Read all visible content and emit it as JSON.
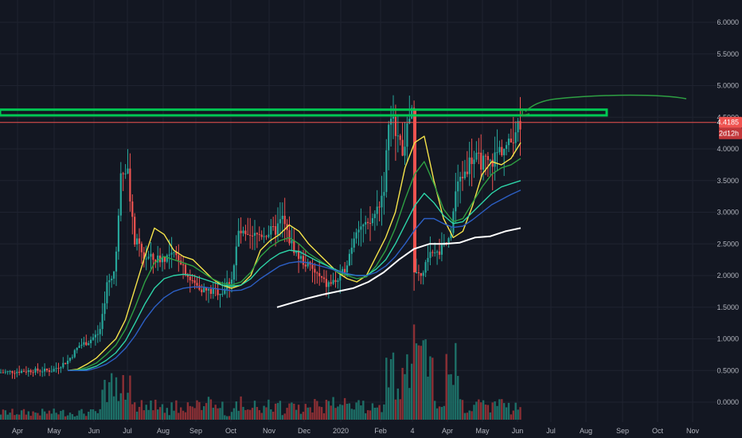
{
  "chart_data": {
    "type": "candlestick",
    "x_axis_labels": [
      "Apr",
      "May",
      "Jun",
      "Jul",
      "Aug",
      "Sep",
      "Oct",
      "Nov",
      "Dec",
      "2020",
      "Feb",
      "4",
      "Apr",
      "May",
      "Jun",
      "Jul",
      "Aug",
      "Sep",
      "Oct",
      "Nov"
    ],
    "y_axis_labels": [
      "6.0000",
      "5.5000",
      "5.0000",
      "4.5000",
      "4.0000",
      "3.5000",
      "3.0000",
      "2.5000",
      "2.0000",
      "1.5000",
      "1.0000",
      "0.5000",
      "0.0000"
    ],
    "y_range": [
      0.0,
      6.0
    ],
    "grid": true,
    "last_price": "4.4185",
    "countdown": "2d12h",
    "colors": {
      "background": "#131722",
      "grid": "#1f2330",
      "axis_text": "#b2b5be",
      "up": "#26a69a",
      "down": "#ef5350",
      "vol_up": "#1d6f67",
      "vol_down": "#8b2f34",
      "ma_fast": "#f5e34a",
      "ma_1": "#2ea043",
      "ma_2": "#2dd4a8",
      "ma_3": "#2c5fc4",
      "ma_long": "#ffffff",
      "resistance_zone": "#00c853",
      "price_line": "#ef5350",
      "annotation_arrow": "#2ea043"
    },
    "resistance_zone": [
      4.53,
      4.62
    ],
    "series": [
      {
        "name": "",
        "kind": "sma",
        "values": [
          0.5,
          0.52,
          0.6,
          0.7,
          0.85,
          1.0,
          1.3,
          1.8,
          2.3,
          2.75,
          2.65,
          2.4,
          2.3,
          2.25,
          2.1,
          1.95,
          1.85,
          1.8,
          1.85,
          2.0,
          2.4,
          2.55,
          2.65,
          2.8,
          2.7,
          2.5,
          2.35,
          2.2,
          2.05,
          1.95,
          1.9,
          2.0,
          2.3,
          2.6,
          3.0,
          3.7,
          4.1,
          4.2,
          3.5,
          2.9,
          2.6,
          2.7,
          3.1,
          3.6,
          3.8,
          3.75,
          3.85,
          4.1
        ]
      },
      {
        "name": "",
        "kind": "sma",
        "values": [
          0.5,
          0.51,
          0.55,
          0.62,
          0.75,
          0.9,
          1.15,
          1.5,
          1.9,
          2.2,
          2.3,
          2.25,
          2.2,
          2.15,
          2.05,
          1.95,
          1.88,
          1.85,
          1.9,
          2.05,
          2.3,
          2.45,
          2.55,
          2.6,
          2.5,
          2.35,
          2.25,
          2.15,
          2.05,
          2.0,
          1.95,
          1.98,
          2.15,
          2.4,
          2.75,
          3.2,
          3.6,
          3.8,
          3.45,
          3.05,
          2.85,
          2.9,
          3.15,
          3.4,
          3.6,
          3.7,
          3.75,
          3.85
        ]
      },
      {
        "name": "",
        "kind": "sma",
        "values": [
          0.5,
          0.5,
          0.52,
          0.57,
          0.66,
          0.78,
          0.97,
          1.25,
          1.55,
          1.8,
          1.95,
          2.0,
          2.02,
          2.0,
          1.95,
          1.9,
          1.85,
          1.83,
          1.85,
          1.95,
          2.12,
          2.25,
          2.35,
          2.4,
          2.38,
          2.3,
          2.22,
          2.15,
          2.08,
          2.02,
          2.0,
          2.0,
          2.1,
          2.25,
          2.5,
          2.8,
          3.1,
          3.3,
          3.15,
          2.95,
          2.82,
          2.85,
          3.0,
          3.15,
          3.3,
          3.4,
          3.45,
          3.5
        ]
      },
      {
        "name": "",
        "kind": "sma",
        "values": [
          0.5,
          0.5,
          0.5,
          0.54,
          0.6,
          0.7,
          0.85,
          1.05,
          1.3,
          1.5,
          1.65,
          1.75,
          1.8,
          1.82,
          1.82,
          1.8,
          1.78,
          1.76,
          1.77,
          1.83,
          1.95,
          2.05,
          2.15,
          2.2,
          2.22,
          2.2,
          2.16,
          2.12,
          2.07,
          2.03,
          2.0,
          2.0,
          2.05,
          2.15,
          2.3,
          2.5,
          2.72,
          2.9,
          2.9,
          2.82,
          2.76,
          2.78,
          2.88,
          3.0,
          3.12,
          3.2,
          3.28,
          3.35
        ]
      },
      {
        "name": "",
        "kind": "sma",
        "values": [
          1.5,
          1.57,
          1.64,
          1.7,
          1.75,
          1.8,
          1.9,
          2.05,
          2.25,
          2.42,
          2.5,
          2.5,
          2.52,
          2.6,
          2.62,
          2.7,
          2.75
        ]
      }
    ]
  }
}
